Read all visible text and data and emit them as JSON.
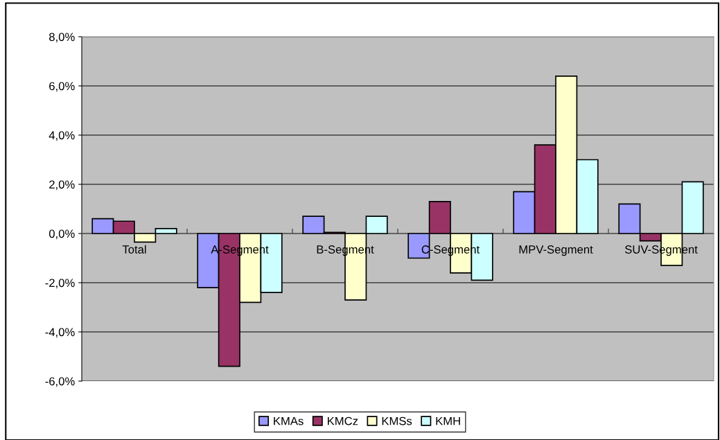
{
  "chart_data": {
    "type": "bar",
    "categories": [
      "Total",
      "A-Segment",
      "B-Segment",
      "C-Segment",
      "MPV-Segment",
      "SUV-Segment"
    ],
    "series": [
      {
        "name": "KMAs",
        "color": "#9999ff",
        "values": [
          0.6,
          -2.2,
          0.7,
          -1.0,
          1.7,
          1.2
        ]
      },
      {
        "name": "KMCz",
        "color": "#993366",
        "values": [
          0.5,
          -5.4,
          0.05,
          1.3,
          3.6,
          -0.3
        ]
      },
      {
        "name": "KMSs",
        "color": "#ffffcc",
        "values": [
          -0.35,
          -2.8,
          -2.7,
          -1.6,
          6.4,
          -1.3
        ]
      },
      {
        "name": "KMH",
        "color": "#ccffff",
        "values": [
          0.2,
          -2.4,
          0.7,
          -1.9,
          3.0,
          2.1
        ]
      }
    ],
    "ylim": [
      -6,
      8
    ],
    "yticks": [
      {
        "value": -6,
        "label": "-6,0%"
      },
      {
        "value": -4,
        "label": "-4,0%"
      },
      {
        "value": -2,
        "label": "-2,0%"
      },
      {
        "value": 0,
        "label": "0,0%"
      },
      {
        "value": 2,
        "label": "2,0%"
      },
      {
        "value": 4,
        "label": "4,0%"
      },
      {
        "value": 6,
        "label": "6,0%"
      },
      {
        "value": 8,
        "label": "8,0%"
      }
    ],
    "grid": "y",
    "legend": "bottom"
  }
}
